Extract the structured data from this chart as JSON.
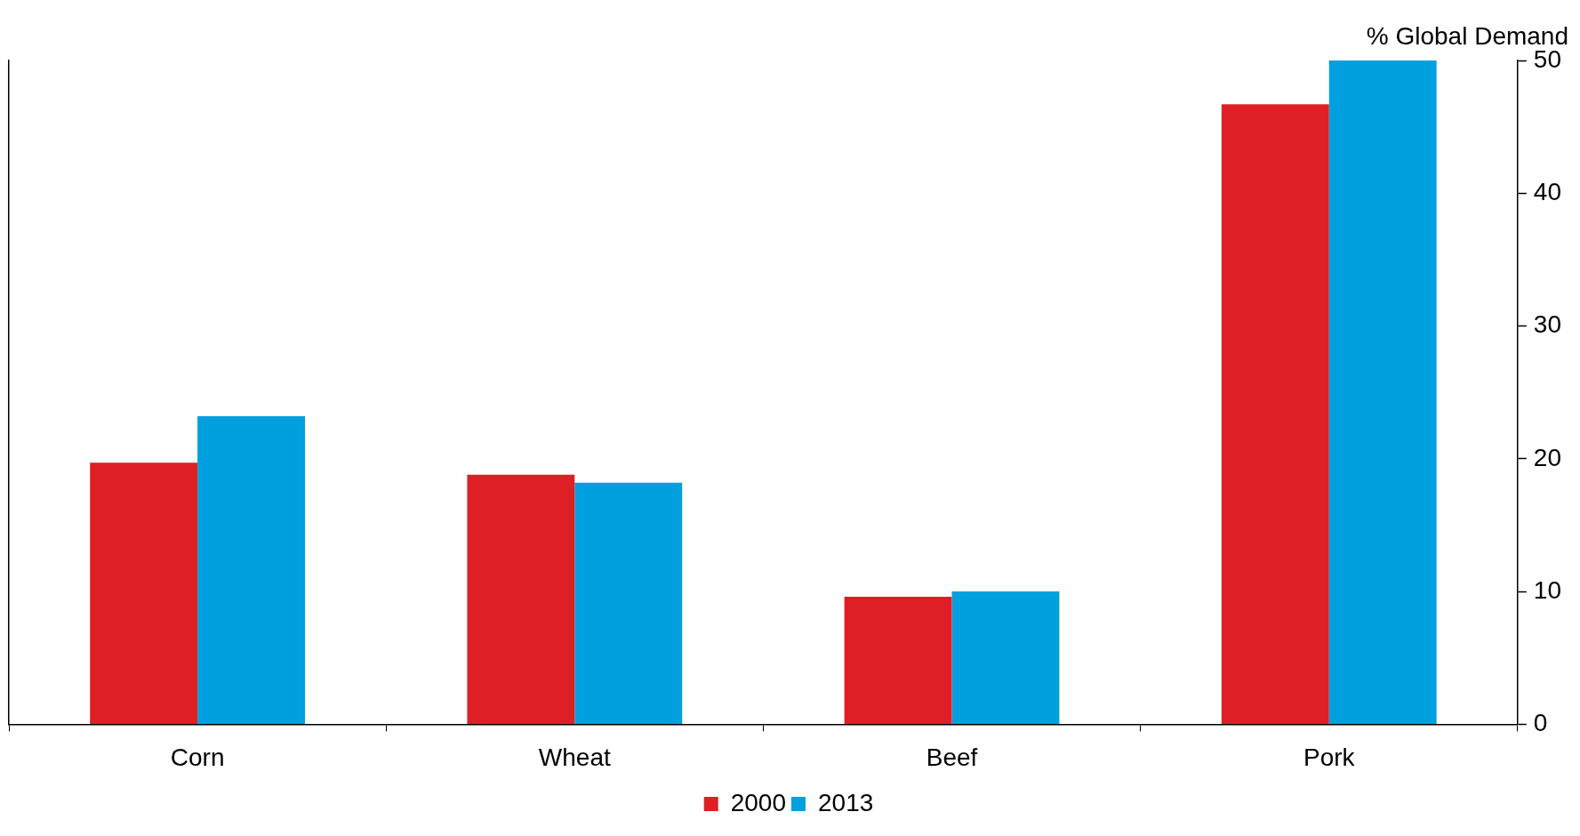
{
  "chart_data": {
    "type": "bar",
    "ylabel": "% Global Demand",
    "categories": [
      "Corn",
      "Wheat",
      "Beef",
      "Pork"
    ],
    "series": [
      {
        "name": "2000",
        "color": "#df1f26",
        "values": [
          19.7,
          18.8,
          9.6,
          46.7
        ]
      },
      {
        "name": "2013",
        "color": "#00a0df",
        "values": [
          23.2,
          18.2,
          10.0,
          50
        ]
      }
    ],
    "ylim": [
      0,
      50
    ],
    "yticks": [
      0,
      10,
      20,
      30,
      40,
      50
    ],
    "grid": false,
    "legend": "bottom"
  }
}
